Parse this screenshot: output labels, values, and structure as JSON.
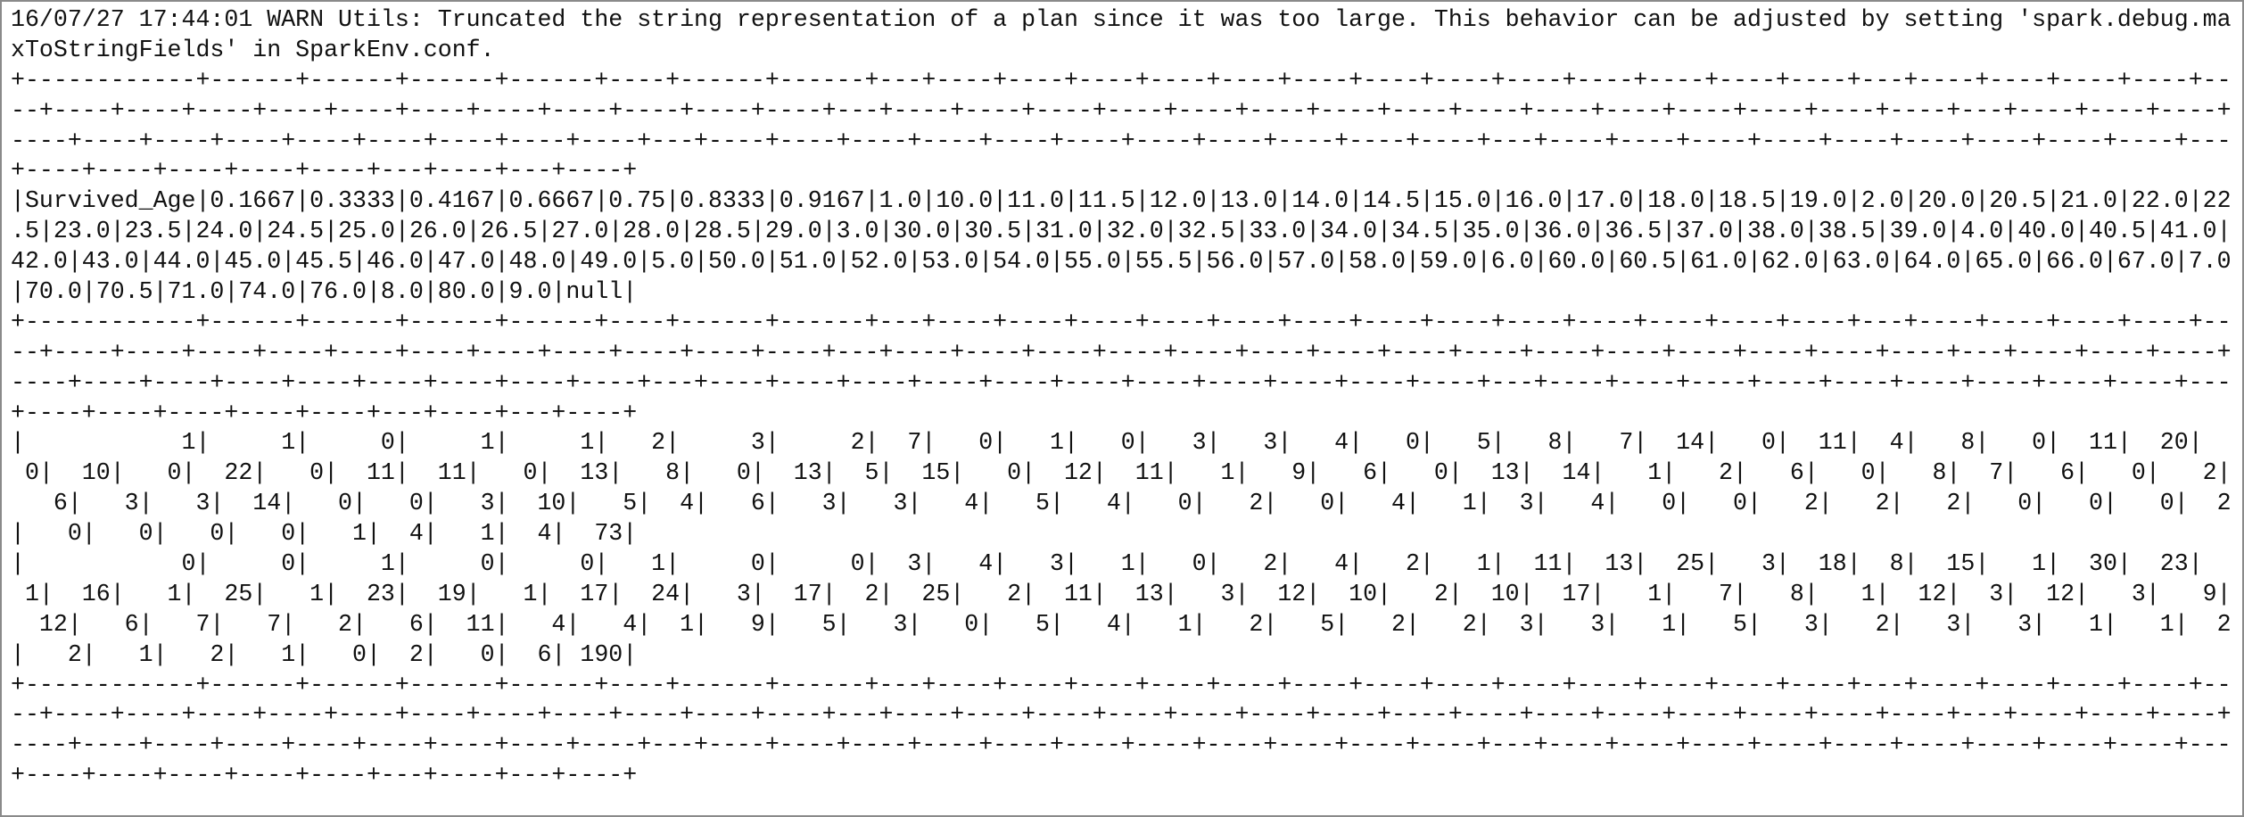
{
  "warning": [
    "16/07/27 17:44:01 WARN Utils: Truncated the string representation of a plan since it was too large. This behavior can be adjusted by setting 'spark.debug.ma",
    "xToStringFields' in SparkEnv.conf."
  ],
  "table": {
    "top_border": [
      "+------------+------+------+------+------+----+------+------+---+----+----+----+----+----+----+----+----+----+----+----+----+----+---+----+----+----+----+--",
      "--+----+----+----+----+----+----+----+----+----+----+----+---+----+----+----+----+----+----+----+----+----+----+----+----+----+----+----+---+----+----+----+",
      "----+----+----+----+----+----+----+----+----+---+----+----+----+----+----+----+----+----+----+----+----+---+----+----+----+----+----+----+----+----+----+---",
      "+----+----+----+----+----+---+----+---+----+"
    ],
    "header": [
      "|Survived_Age|0.1667|0.3333|0.4167|0.6667|0.75|0.8333|0.9167|1.0|10.0|11.0|11.5|12.0|13.0|14.0|14.5|15.0|16.0|17.0|18.0|18.5|19.0|2.0|20.0|20.5|21.0|22.0|22",
      ".5|23.0|23.5|24.0|24.5|25.0|26.0|26.5|27.0|28.0|28.5|29.0|3.0|30.0|30.5|31.0|32.0|32.5|33.0|34.0|34.5|35.0|36.0|36.5|37.0|38.0|38.5|39.0|4.0|40.0|40.5|41.0|",
      "42.0|43.0|44.0|45.0|45.5|46.0|47.0|48.0|49.0|5.0|50.0|51.0|52.0|53.0|54.0|55.0|55.5|56.0|57.0|58.0|59.0|6.0|60.0|60.5|61.0|62.0|63.0|64.0|65.0|66.0|67.0|7.0",
      "|70.0|70.5|71.0|74.0|76.0|8.0|80.0|9.0|null|"
    ],
    "header_border": [
      "+------------+------+------+------+------+----+------+------+---+----+----+----+----+----+----+----+----+----+----+----+----+----+---+----+----+----+----+--",
      "--+----+----+----+----+----+----+----+----+----+----+----+---+----+----+----+----+----+----+----+----+----+----+----+----+----+----+----+---+----+----+----+",
      "----+----+----+----+----+----+----+----+----+---+----+----+----+----+----+----+----+----+----+----+----+---+----+----+----+----+----+----+----+----+----+---",
      "+----+----+----+----+----+---+----+---+----+"
    ],
    "rows": [
      [
        "|           1|     1|     0|     1|     1|   2|     3|     2|  7|   0|   1|   0|   3|   3|   4|   0|   5|   8|   7|  14|   0|  11|  4|   8|   0|  11|  20|  ",
        " 0|  10|   0|  22|   0|  11|  11|   0|  13|   8|   0|  13|  5|  15|   0|  12|  11|   1|   9|   6|   0|  13|  14|   1|   2|   6|   0|   8|  7|   6|   0|   2|",
        "   6|   3|   3|  14|   0|   0|   3|  10|   5|  4|   6|   3|   3|   4|   5|   4|   0|   2|   0|   4|   1|  3|   4|   0|   0|   2|   2|   2|   0|   0|   0|  2",
        "|   0|   0|   0|   0|   1|  4|   1|  4|  73|"
      ],
      [
        "|           0|     0|     1|     0|     0|   1|     0|     0|  3|   4|   3|   1|   0|   2|   4|   2|   1|  11|  13|  25|   3|  18|  8|  15|   1|  30|  23|  ",
        " 1|  16|   1|  25|   1|  23|  19|   1|  17|  24|   3|  17|  2|  25|   2|  11|  13|   3|  12|  10|   2|  10|  17|   1|   7|   8|   1|  12|  3|  12|   3|   9|",
        "  12|   6|   7|   7|   2|   6|  11|   4|   4|  1|   9|   5|   3|   0|   5|   4|   1|   2|   5|   2|   2|  3|   3|   1|   5|   3|   2|   3|   3|   1|   1|  2",
        "|   2|   1|   2|   1|   0|  2|   0|  6| 190|"
      ]
    ],
    "bottom_border": [
      "+------------+------+------+------+------+----+------+------+---+----+----+----+----+----+----+----+----+----+----+----+----+----+---+----+----+----+----+--",
      "--+----+----+----+----+----+----+----+----+----+----+----+---+----+----+----+----+----+----+----+----+----+----+----+----+----+----+----+---+----+----+----+",
      "----+----+----+----+----+----+----+----+----+---+----+----+----+----+----+----+----+----+----+----+----+---+----+----+----+----+----+----+----+----+----+---",
      "+----+----+----+----+----+---+----+---+----+"
    ]
  }
}
